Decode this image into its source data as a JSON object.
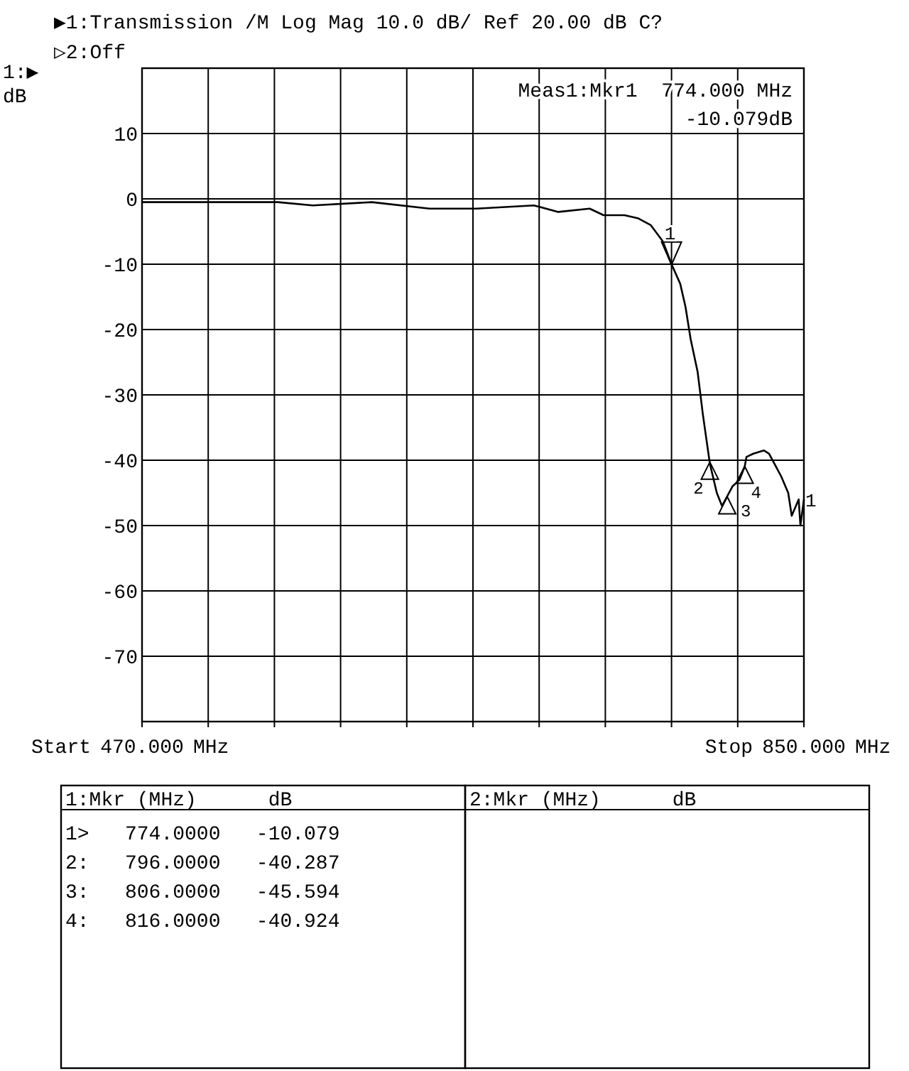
{
  "chart_data": [
    {
      "type": "line",
      "title": "▶1:Transmission  /M Log Mag  10.0 dB/ Ref  20.00 dB   C?",
      "subtitle": "▷2:Off",
      "ylabel": "dB",
      "x": [
        470,
        485,
        498,
        508,
        532,
        548,
        568,
        602,
        635,
        662,
        695,
        709,
        727,
        735,
        747,
        755,
        762,
        769,
        774,
        779,
        782,
        785,
        789,
        792,
        796,
        800,
        803,
        806,
        809,
        811,
        813,
        816,
        817,
        821,
        827,
        830,
        834,
        837,
        841,
        843,
        847,
        848,
        850
      ],
      "series": [
        {
          "color": "#000000",
          "values": [
            -0.5,
            -0.5,
            -0.5,
            -0.5,
            -0.5,
            -0.5,
            -1,
            -0.5,
            -1.5,
            -1.5,
            -1,
            -2,
            -1.5,
            -2.5,
            -2.5,
            -3,
            -4,
            -6.5,
            -10,
            -13,
            -16.5,
            -21.5,
            -26.5,
            -33,
            -40.5,
            -45,
            -47,
            -45.5,
            -44,
            -43.5,
            -43,
            -41,
            -39.5,
            -39,
            -38.5,
            -39,
            -41,
            -42.5,
            -45,
            -48.5,
            -46,
            -50,
            -46
          ]
        }
      ],
      "xlim": [
        470,
        850
      ],
      "xticks": [
        {
          "value": 470,
          "label": "470.000"
        },
        {
          "value": 508,
          "label": null
        },
        {
          "value": 546,
          "label": null
        },
        {
          "value": 584,
          "label": null
        },
        {
          "value": 622,
          "label": null
        },
        {
          "value": 660,
          "label": null
        },
        {
          "value": 698,
          "label": null
        },
        {
          "value": 736,
          "label": null
        },
        {
          "value": 774,
          "label": null
        },
        {
          "value": 812,
          "label": null
        },
        {
          "value": 850,
          "label": "850.000"
        }
      ],
      "ylim": [
        -80,
        20
      ],
      "yticks": [
        10,
        0,
        -10,
        -20,
        -30,
        -40,
        -50,
        -60,
        -70
      ],
      "grid": true,
      "marker": "none",
      "line_style": "solid",
      "annotations": [
        {
          "text": "1",
          "x": 774,
          "y": -10.079
        },
        {
          "text": "2",
          "x": 796,
          "y": -40.287
        },
        {
          "text": "3",
          "x": 806,
          "y": -45.594
        },
        {
          "text": "4",
          "x": 816,
          "y": -40.924
        },
        {
          "text": "1",
          "x": 850,
          "y": -46
        },
        "1:▶",
        "Meas1:Mkr1  774.000 MHz",
        "-10.079dB",
        "Start",
        "MHz",
        "Stop",
        "MHz"
      ]
    },
    {
      "type": "other",
      "title": "1:Mkr (MHz)      dB",
      "annotations": [
        "1>   774.0000   -10.079",
        "2:   796.0000   -40.287",
        "3:   806.0000   -45.594",
        "4:   816.0000   -40.924"
      ]
    },
    {
      "type": "other",
      "title": "2:Mkr (MHz)      dB"
    }
  ]
}
